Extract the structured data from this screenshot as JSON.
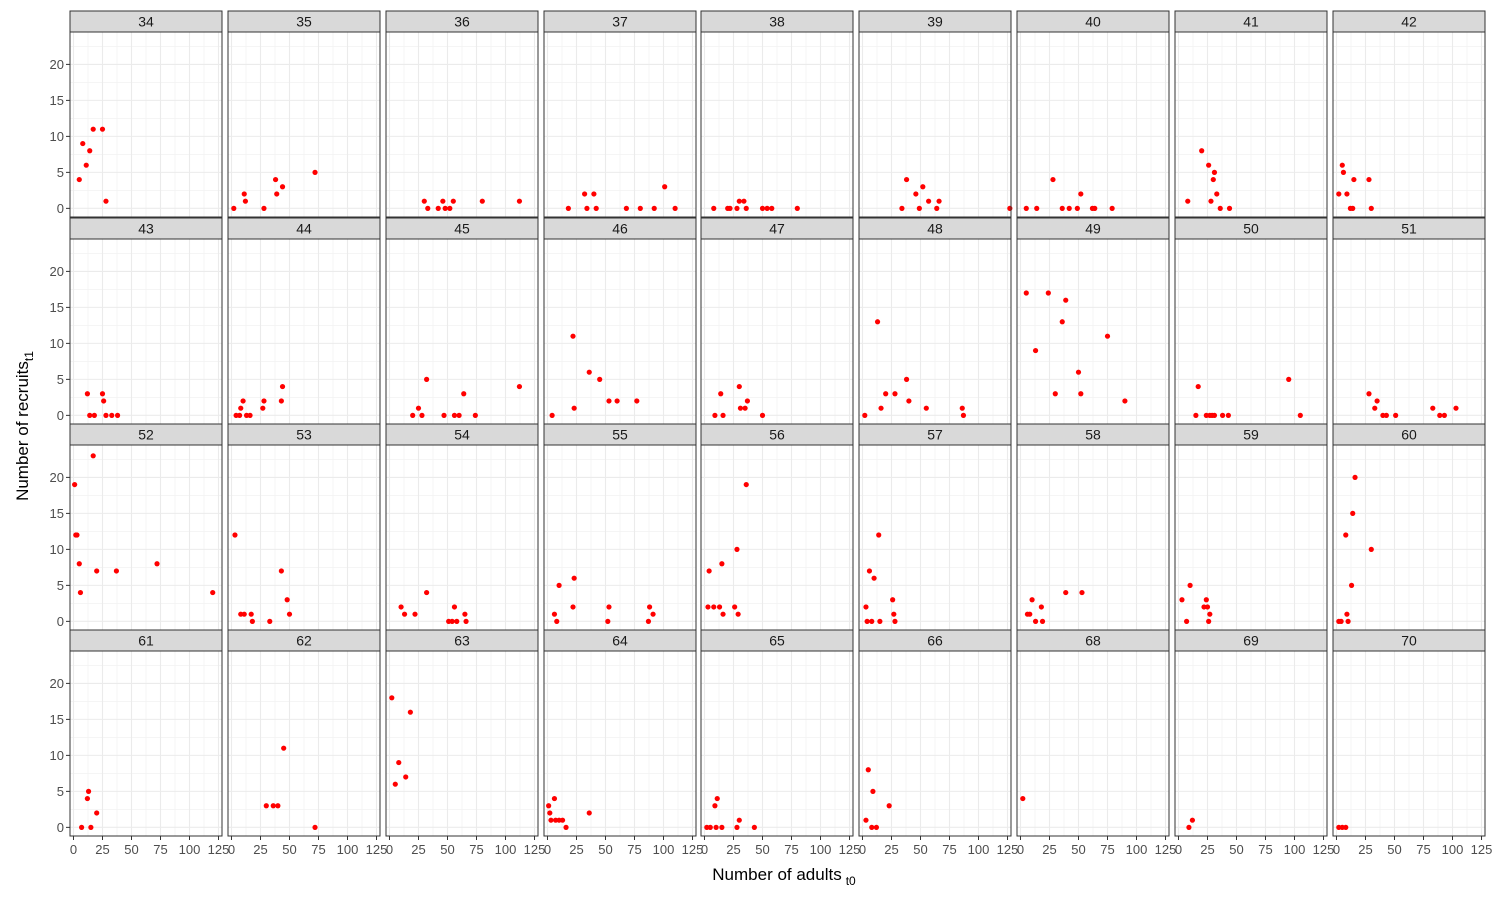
{
  "chart_data": {
    "type": "scatter",
    "xlabel": "Number of adults",
    "xlabel_subscript": "t0",
    "ylabel": "Number of recruits",
    "ylabel_subscript": "t1",
    "xlim": [
      -3,
      128
    ],
    "ylim": [
      -1.2,
      24.5
    ],
    "x_ticks": [
      0,
      25,
      50,
      75,
      100,
      125
    ],
    "x_tick_labels": [
      "0",
      "25",
      "50",
      "75",
      "100",
      "125"
    ],
    "y_ticks": [
      0,
      5,
      10,
      15,
      20
    ],
    "y_tick_labels": [
      "0",
      "5",
      "10",
      "15",
      "20"
    ],
    "grid": true,
    "point_color": "#ff0000",
    "columns": 9,
    "panels": [
      {
        "label": "34",
        "points": [
          [
            5,
            4
          ],
          [
            8,
            9
          ],
          [
            11,
            6
          ],
          [
            14,
            8
          ],
          [
            17,
            11
          ],
          [
            25,
            11
          ],
          [
            28,
            1
          ]
        ]
      },
      {
        "label": "35",
        "points": [
          [
            2,
            0
          ],
          [
            11,
            2
          ],
          [
            12,
            1
          ],
          [
            28,
            0
          ],
          [
            38,
            4
          ],
          [
            39,
            2
          ],
          [
            44,
            3
          ],
          [
            72,
            5
          ]
        ]
      },
      {
        "label": "36",
        "points": [
          [
            30,
            1
          ],
          [
            33,
            0
          ],
          [
            42,
            0
          ],
          [
            46,
            1
          ],
          [
            48,
            0
          ],
          [
            52,
            0
          ],
          [
            55,
            1
          ],
          [
            80,
            1
          ],
          [
            112,
            1
          ]
        ]
      },
      {
        "label": "37",
        "points": [
          [
            18,
            0
          ],
          [
            32,
            2
          ],
          [
            34,
            0
          ],
          [
            40,
            2
          ],
          [
            42,
            0
          ],
          [
            68,
            0
          ],
          [
            80,
            0
          ],
          [
            92,
            0
          ],
          [
            101,
            3
          ],
          [
            110,
            0
          ]
        ]
      },
      {
        "label": "38",
        "points": [
          [
            8,
            0
          ],
          [
            20,
            0
          ],
          [
            22,
            0
          ],
          [
            28,
            0
          ],
          [
            30,
            1
          ],
          [
            34,
            1
          ],
          [
            36,
            0
          ],
          [
            50,
            0
          ],
          [
            54,
            0
          ],
          [
            58,
            0
          ],
          [
            80,
            0
          ]
        ]
      },
      {
        "label": "39",
        "points": [
          [
            34,
            0
          ],
          [
            38,
            4
          ],
          [
            46,
            2
          ],
          [
            49,
            0
          ],
          [
            52,
            3
          ],
          [
            57,
            1
          ],
          [
            64,
            0
          ],
          [
            66,
            1
          ],
          [
            127,
            0
          ]
        ]
      },
      {
        "label": "40",
        "points": [
          [
            5,
            0
          ],
          [
            14,
            0
          ],
          [
            28,
            4
          ],
          [
            36,
            0
          ],
          [
            42,
            0
          ],
          [
            49,
            0
          ],
          [
            52,
            2
          ],
          [
            62,
            0
          ],
          [
            64,
            0
          ],
          [
            79,
            0
          ]
        ]
      },
      {
        "label": "41",
        "points": [
          [
            8,
            1
          ],
          [
            20,
            8
          ],
          [
            26,
            6
          ],
          [
            28,
            1
          ],
          [
            30,
            4
          ],
          [
            31,
            5
          ],
          [
            33,
            2
          ],
          [
            36,
            0
          ],
          [
            44,
            0
          ]
        ]
      },
      {
        "label": "42",
        "points": [
          [
            2,
            2
          ],
          [
            5,
            6
          ],
          [
            6,
            5
          ],
          [
            9,
            2
          ],
          [
            12,
            0
          ],
          [
            14,
            0
          ],
          [
            15,
            4
          ],
          [
            28,
            4
          ],
          [
            30,
            0
          ]
        ]
      },
      {
        "label": "43",
        "points": [
          [
            12,
            3
          ],
          [
            14,
            0
          ],
          [
            18,
            0
          ],
          [
            25,
            3
          ],
          [
            26,
            2
          ],
          [
            28,
            0
          ],
          [
            33,
            0
          ],
          [
            38,
            0
          ]
        ]
      },
      {
        "label": "44",
        "points": [
          [
            4,
            0
          ],
          [
            7,
            0
          ],
          [
            8,
            1
          ],
          [
            10,
            2
          ],
          [
            13,
            0
          ],
          [
            16,
            0
          ],
          [
            27,
            1
          ],
          [
            28,
            2
          ],
          [
            43,
            2
          ],
          [
            44,
            4
          ]
        ]
      },
      {
        "label": "45",
        "points": [
          [
            20,
            0
          ],
          [
            25,
            1
          ],
          [
            28,
            0
          ],
          [
            32,
            5
          ],
          [
            47,
            0
          ],
          [
            56,
            0
          ],
          [
            60,
            0
          ],
          [
            64,
            3
          ],
          [
            74,
            0
          ],
          [
            112,
            4
          ]
        ]
      },
      {
        "label": "46",
        "points": [
          [
            4,
            0
          ],
          [
            22,
            11
          ],
          [
            23,
            1
          ],
          [
            36,
            6
          ],
          [
            45,
            5
          ],
          [
            53,
            2
          ],
          [
            60,
            2
          ],
          [
            77,
            2
          ]
        ]
      },
      {
        "label": "47",
        "points": [
          [
            9,
            0
          ],
          [
            14,
            3
          ],
          [
            16,
            0
          ],
          [
            30,
            4
          ],
          [
            31,
            1
          ],
          [
            35,
            1
          ],
          [
            37,
            2
          ],
          [
            50,
            0
          ]
        ]
      },
      {
        "label": "48",
        "points": [
          [
            2,
            0
          ],
          [
            13,
            13
          ],
          [
            16,
            1
          ],
          [
            20,
            3
          ],
          [
            28,
            3
          ],
          [
            38,
            5
          ],
          [
            40,
            2
          ],
          [
            55,
            1
          ],
          [
            86,
            1
          ],
          [
            87,
            0
          ]
        ]
      },
      {
        "label": "49",
        "points": [
          [
            5,
            17
          ],
          [
            13,
            9
          ],
          [
            24,
            17
          ],
          [
            30,
            3
          ],
          [
            36,
            13
          ],
          [
            39,
            16
          ],
          [
            50,
            6
          ],
          [
            52,
            3
          ],
          [
            75,
            11
          ],
          [
            90,
            2
          ]
        ]
      },
      {
        "label": "50",
        "points": [
          [
            15,
            0
          ],
          [
            17,
            4
          ],
          [
            24,
            0
          ],
          [
            27,
            0
          ],
          [
            29,
            0
          ],
          [
            31,
            0
          ],
          [
            38,
            0
          ],
          [
            43,
            0
          ],
          [
            95,
            5
          ],
          [
            105,
            0
          ]
        ]
      },
      {
        "label": "51",
        "points": [
          [
            28,
            3
          ],
          [
            33,
            1
          ],
          [
            35,
            2
          ],
          [
            40,
            0
          ],
          [
            43,
            0
          ],
          [
            51,
            0
          ],
          [
            83,
            1
          ],
          [
            89,
            0
          ],
          [
            93,
            0
          ],
          [
            103,
            1
          ]
        ]
      },
      {
        "label": "52",
        "points": [
          [
            1,
            19
          ],
          [
            2,
            12
          ],
          [
            3,
            12
          ],
          [
            5,
            8
          ],
          [
            6,
            4
          ],
          [
            17,
            23
          ],
          [
            20,
            7
          ],
          [
            37,
            7
          ],
          [
            72,
            8
          ],
          [
            120,
            4
          ]
        ]
      },
      {
        "label": "53",
        "points": [
          [
            3,
            12
          ],
          [
            8,
            1
          ],
          [
            11,
            1
          ],
          [
            17,
            1
          ],
          [
            18,
            0
          ],
          [
            33,
            0
          ],
          [
            43,
            7
          ],
          [
            48,
            3
          ],
          [
            50,
            1
          ]
        ]
      },
      {
        "label": "54",
        "points": [
          [
            10,
            2
          ],
          [
            13,
            1
          ],
          [
            22,
            1
          ],
          [
            32,
            4
          ],
          [
            51,
            0
          ],
          [
            54,
            0
          ],
          [
            56,
            2
          ],
          [
            58,
            0
          ],
          [
            65,
            1
          ],
          [
            66,
            0
          ]
        ]
      },
      {
        "label": "55",
        "points": [
          [
            6,
            1
          ],
          [
            8,
            0
          ],
          [
            10,
            5
          ],
          [
            22,
            2
          ],
          [
            23,
            6
          ],
          [
            52,
            0
          ],
          [
            53,
            2
          ],
          [
            87,
            0
          ],
          [
            88,
            2
          ],
          [
            91,
            1
          ]
        ]
      },
      {
        "label": "56",
        "points": [
          [
            3,
            2
          ],
          [
            4,
            7
          ],
          [
            8,
            2
          ],
          [
            13,
            2
          ],
          [
            15,
            8
          ],
          [
            16,
            1
          ],
          [
            26,
            2
          ],
          [
            28,
            10
          ],
          [
            29,
            1
          ],
          [
            36,
            19
          ]
        ]
      },
      {
        "label": "57",
        "points": [
          [
            3,
            2
          ],
          [
            4,
            0
          ],
          [
            6,
            7
          ],
          [
            8,
            0
          ],
          [
            10,
            6
          ],
          [
            14,
            12
          ],
          [
            15,
            0
          ],
          [
            26,
            3
          ],
          [
            27,
            1
          ],
          [
            28,
            0
          ]
        ]
      },
      {
        "label": "58",
        "points": [
          [
            6,
            1
          ],
          [
            8,
            1
          ],
          [
            10,
            3
          ],
          [
            13,
            0
          ],
          [
            18,
            2
          ],
          [
            19,
            0
          ],
          [
            39,
            4
          ],
          [
            53,
            4
          ]
        ]
      },
      {
        "label": "59",
        "points": [
          [
            3,
            3
          ],
          [
            7,
            0
          ],
          [
            10,
            5
          ],
          [
            22,
            2
          ],
          [
            24,
            3
          ],
          [
            25,
            2
          ],
          [
            26,
            0
          ],
          [
            27,
            1
          ]
        ]
      },
      {
        "label": "60",
        "points": [
          [
            2,
            0
          ],
          [
            4,
            0
          ],
          [
            8,
            12
          ],
          [
            9,
            1
          ],
          [
            10,
            0
          ],
          [
            13,
            5
          ],
          [
            14,
            15
          ],
          [
            16,
            20
          ],
          [
            30,
            10
          ]
        ]
      },
      {
        "label": "61",
        "points": [
          [
            7,
            0
          ],
          [
            12,
            4
          ],
          [
            13,
            5
          ],
          [
            15,
            0
          ],
          [
            20,
            2
          ]
        ]
      },
      {
        "label": "62",
        "points": [
          [
            30,
            3
          ],
          [
            36,
            3
          ],
          [
            40,
            3
          ],
          [
            45,
            11
          ],
          [
            72,
            0
          ]
        ]
      },
      {
        "label": "63",
        "points": [
          [
            2,
            18
          ],
          [
            5,
            6
          ],
          [
            8,
            9
          ],
          [
            14,
            7
          ],
          [
            18,
            16
          ]
        ]
      },
      {
        "label": "64",
        "points": [
          [
            1,
            3
          ],
          [
            2,
            2
          ],
          [
            3,
            1
          ],
          [
            6,
            4
          ],
          [
            7,
            1
          ],
          [
            10,
            1
          ],
          [
            13,
            1
          ],
          [
            16,
            0
          ],
          [
            36,
            2
          ]
        ]
      },
      {
        "label": "65",
        "points": [
          [
            2,
            0
          ],
          [
            5,
            0
          ],
          [
            9,
            3
          ],
          [
            10,
            0
          ],
          [
            11,
            4
          ],
          [
            15,
            0
          ],
          [
            28,
            0
          ],
          [
            30,
            1
          ],
          [
            43,
            0
          ]
        ]
      },
      {
        "label": "66",
        "points": [
          [
            3,
            1
          ],
          [
            5,
            8
          ],
          [
            8,
            0
          ],
          [
            9,
            5
          ],
          [
            12,
            0
          ],
          [
            23,
            3
          ]
        ]
      },
      {
        "label": "68",
        "points": [
          [
            2,
            4
          ]
        ]
      },
      {
        "label": "69",
        "points": [
          [
            9,
            0
          ],
          [
            12,
            1
          ]
        ]
      },
      {
        "label": "70",
        "points": [
          [
            2,
            0
          ],
          [
            5,
            0
          ],
          [
            8,
            0
          ]
        ]
      }
    ]
  }
}
